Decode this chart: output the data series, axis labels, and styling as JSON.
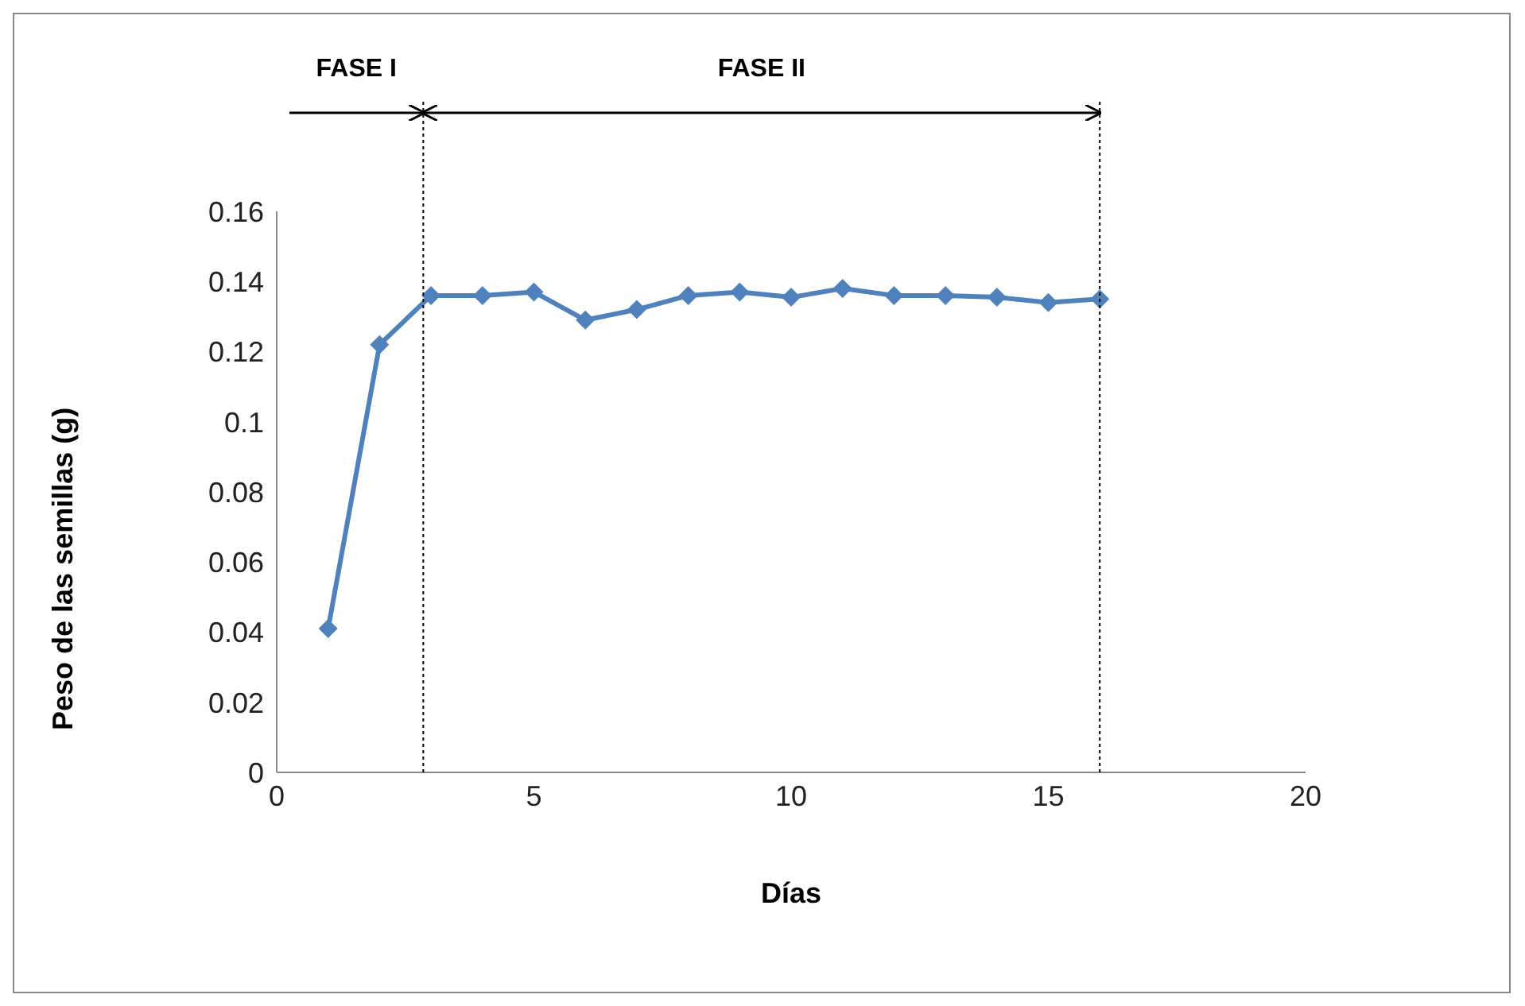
{
  "chart_data": {
    "type": "line",
    "xlabel": "Días",
    "ylabel": "Peso de las semillas (g)",
    "x": [
      1,
      2,
      3,
      4,
      5,
      6,
      7,
      8,
      9,
      10,
      11,
      12,
      13,
      14,
      15,
      16
    ],
    "series": [
      {
        "color": "#4f81bd",
        "values": [
          0.041,
          0.122,
          0.136,
          0.136,
          0.137,
          0.129,
          0.132,
          0.136,
          0.137,
          0.1355,
          0.138,
          0.136,
          0.136,
          0.1355,
          0.134,
          0.135
        ]
      }
    ],
    "xlim": [
      0,
      20
    ],
    "xticks": [
      0,
      5,
      10,
      15,
      20
    ],
    "ylim": [
      0,
      0.16
    ],
    "yticks": [
      0,
      0.02,
      0.04,
      0.06,
      0.08,
      0.1,
      0.12,
      0.14,
      0.16
    ],
    "ref_lines": [
      {
        "axis": "x",
        "value": 2.85,
        "line_style": "dotted"
      },
      {
        "axis": "x",
        "value": 16,
        "line_style": "dotted"
      }
    ],
    "annotations": [
      "FASE I",
      "FASE II"
    ],
    "grid": false,
    "legend": false,
    "marker": "diamond",
    "line_style": "solid"
  }
}
